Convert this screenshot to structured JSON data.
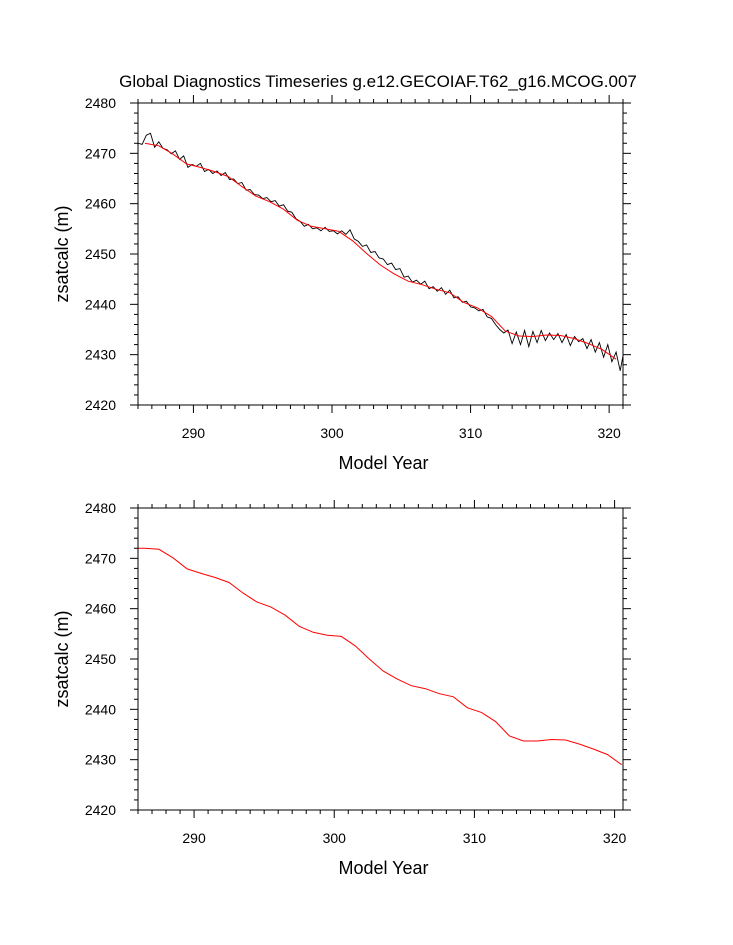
{
  "title": "Global Diagnostics Timeseries g.e12.GECOIAF.T62_g16.MCOG.007",
  "colors": {
    "monthly_line": "#000000",
    "annual_line": "#ff0000",
    "frame": "#000000"
  },
  "chart_data": [
    {
      "type": "line",
      "xlabel": "Model Year",
      "ylabel": "zsatcalc (m)",
      "xlim": [
        286,
        321
      ],
      "ylim": [
        2420,
        2480
      ],
      "xticks": [
        290,
        300,
        310,
        320
      ],
      "yticks": [
        2420,
        2430,
        2440,
        2450,
        2460,
        2470,
        2480
      ],
      "series": [
        {
          "style": "monthly",
          "color": "#000000",
          "x": [
            286.0,
            286.3,
            286.6,
            286.9,
            287.2,
            287.5,
            287.8,
            288.1,
            288.4,
            288.7,
            289.0,
            289.3,
            289.6,
            289.9,
            290.2,
            290.5,
            290.8,
            291.1,
            291.4,
            291.7,
            292.0,
            292.3,
            292.6,
            292.9,
            293.2,
            293.5,
            293.8,
            294.1,
            294.4,
            294.7,
            295.0,
            295.3,
            295.6,
            295.9,
            296.2,
            296.5,
            296.8,
            297.1,
            297.4,
            297.7,
            298.0,
            298.3,
            298.6,
            298.9,
            299.2,
            299.5,
            299.8,
            300.1,
            300.4,
            300.7,
            301.0,
            301.3,
            301.6,
            301.9,
            302.2,
            302.5,
            302.8,
            303.1,
            303.4,
            303.7,
            304.0,
            304.3,
            304.6,
            304.9,
            305.2,
            305.5,
            305.8,
            306.1,
            306.4,
            306.7,
            307.0,
            307.3,
            307.6,
            307.9,
            308.2,
            308.5,
            308.8,
            309.1,
            309.4,
            309.7,
            310.0,
            310.3,
            310.6,
            310.9,
            311.2,
            311.5,
            311.8,
            312.1,
            312.4,
            312.7,
            313.0,
            313.3,
            313.6,
            313.9,
            314.2,
            314.5,
            314.8,
            315.1,
            315.4,
            315.7,
            316.0,
            316.3,
            316.6,
            316.9,
            317.2,
            317.5,
            317.8,
            318.1,
            318.4,
            318.7,
            319.0,
            319.3,
            319.6,
            319.9,
            320.2,
            320.5,
            320.8,
            321.0
          ],
          "y": [
            2472.0,
            2471.8,
            2473.6,
            2474.0,
            2471.2,
            2472.3,
            2471.0,
            2470.7,
            2469.9,
            2470.5,
            2468.8,
            2469.5,
            2467.2,
            2467.8,
            2467.4,
            2468.0,
            2466.4,
            2466.8,
            2466.0,
            2466.5,
            2465.6,
            2466.2,
            2464.8,
            2464.9,
            2464.0,
            2464.2,
            2462.7,
            2462.8,
            2461.8,
            2461.7,
            2461.0,
            2461.2,
            2460.4,
            2460.6,
            2459.5,
            2459.8,
            2458.5,
            2458.3,
            2457.0,
            2456.5,
            2455.5,
            2455.9,
            2455.0,
            2455.2,
            2454.6,
            2455.3,
            2454.5,
            2454.6,
            2454.0,
            2454.6,
            2453.9,
            2454.8,
            2453.0,
            2452.5,
            2451.5,
            2451.8,
            2450.3,
            2450.5,
            2449.2,
            2449.0,
            2447.9,
            2448.2,
            2446.9,
            2447.1,
            2445.4,
            2445.6,
            2444.4,
            2444.8,
            2444.0,
            2444.6,
            2443.1,
            2443.5,
            2442.6,
            2443.3,
            2442.0,
            2442.8,
            2441.3,
            2441.5,
            2440.4,
            2440.6,
            2439.5,
            2439.3,
            2438.7,
            2439.0,
            2437.5,
            2437.2,
            2436.0,
            2435.0,
            2434.3,
            2434.9,
            2432.2,
            2434.5,
            2432.0,
            2434.8,
            2431.6,
            2434.6,
            2432.4,
            2434.8,
            2432.8,
            2434.3,
            2433.0,
            2434.2,
            2432.4,
            2434.0,
            2431.8,
            2433.6,
            2432.6,
            2433.2,
            2431.2,
            2433.0,
            2430.5,
            2432.4,
            2429.5,
            2432.0,
            2428.6,
            2430.5,
            2426.8,
            2429.8
          ]
        },
        {
          "style": "annual",
          "color": "#ff0000",
          "x": [
            286.5,
            287.5,
            288.5,
            289.5,
            290.5,
            291.5,
            292.5,
            293.5,
            294.5,
            295.5,
            296.5,
            297.5,
            298.5,
            299.5,
            300.5,
            301.5,
            302.5,
            303.5,
            304.5,
            305.5,
            306.5,
            307.5,
            308.5,
            309.5,
            310.5,
            311.5,
            312.5,
            313.5,
            314.5,
            315.5,
            316.5,
            317.5,
            318.5,
            319.5,
            320.5
          ],
          "y": [
            2472.0,
            2471.5,
            2469.9,
            2467.9,
            2467.2,
            2466.4,
            2465.4,
            2463.4,
            2461.5,
            2460.4,
            2458.9,
            2456.7,
            2455.5,
            2455.0,
            2454.5,
            2452.6,
            2450.1,
            2447.8,
            2446.0,
            2444.6,
            2443.9,
            2443.0,
            2442.3,
            2440.4,
            2439.3,
            2437.6,
            2434.7,
            2433.7,
            2433.6,
            2433.9,
            2433.8,
            2433.2,
            2432.2,
            2431.0,
            2429.1
          ]
        }
      ]
    },
    {
      "type": "line",
      "xlabel": "Model Year",
      "ylabel": "zsatcalc (m)",
      "xlim": [
        286,
        320.6
      ],
      "ylim": [
        2420,
        2480
      ],
      "xticks": [
        290,
        300,
        310,
        320
      ],
      "yticks": [
        2420,
        2430,
        2440,
        2450,
        2460,
        2470,
        2480
      ],
      "series": [
        {
          "style": "annual",
          "color": "#ff0000",
          "x": [
            286.0,
            286.5,
            287.5,
            288.5,
            289.5,
            290.5,
            291.5,
            292.5,
            293.5,
            294.5,
            295.5,
            296.5,
            297.5,
            298.5,
            299.5,
            300.5,
            301.5,
            302.5,
            303.5,
            304.5,
            305.5,
            306.5,
            307.5,
            308.5,
            309.5,
            310.5,
            311.5,
            312.5,
            313.5,
            314.5,
            315.5,
            316.5,
            317.5,
            318.5,
            319.5,
            320.5
          ],
          "y": [
            2472.0,
            2472.0,
            2471.8,
            2470.1,
            2467.9,
            2467.0,
            2466.2,
            2465.2,
            2463.1,
            2461.3,
            2460.3,
            2458.7,
            2456.5,
            2455.3,
            2454.7,
            2454.5,
            2452.6,
            2450.0,
            2447.6,
            2446.0,
            2444.7,
            2444.1,
            2443.1,
            2442.5,
            2440.3,
            2439.4,
            2437.6,
            2434.7,
            2433.7,
            2433.7,
            2434.0,
            2433.9,
            2433.1,
            2432.1,
            2431.0,
            2429.0
          ]
        }
      ]
    }
  ]
}
